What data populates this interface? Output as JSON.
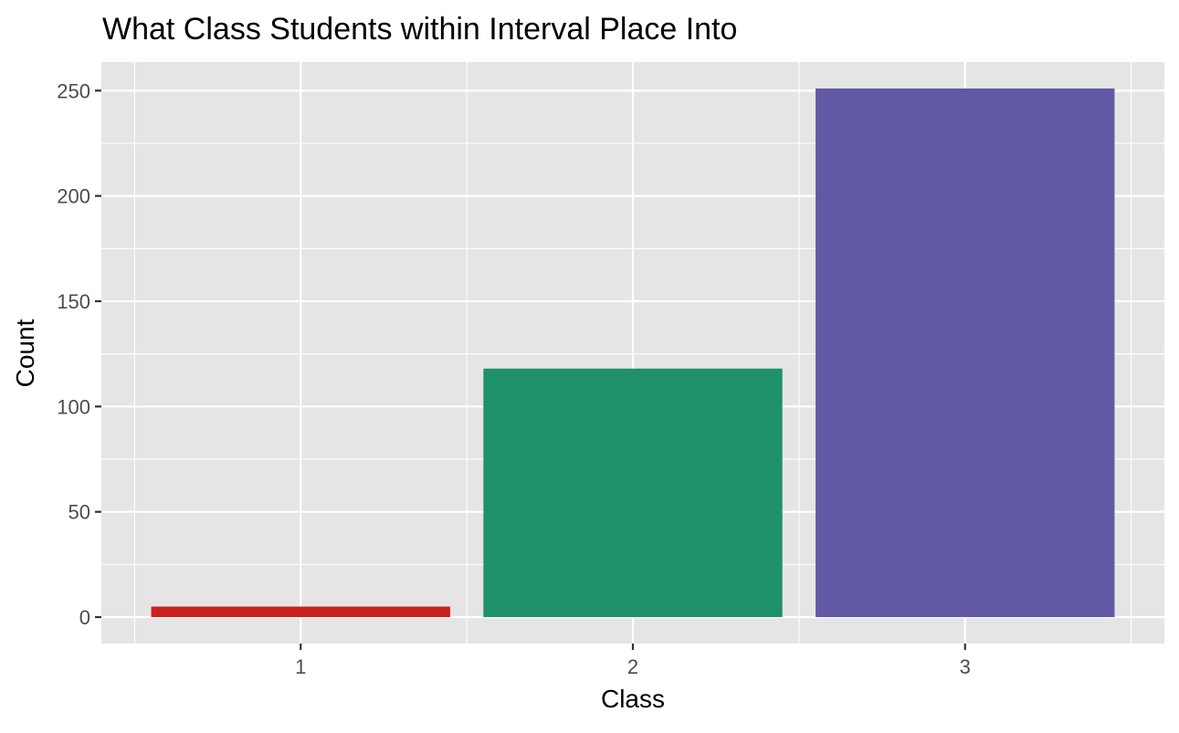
{
  "chart_data": {
    "type": "bar",
    "title": "What Class Students within Interval Place Into",
    "xlabel": "Class",
    "ylabel": "Count",
    "categories": [
      "1",
      "2",
      "3"
    ],
    "values": [
      5,
      118,
      251
    ],
    "colors": [
      "#ca211d",
      "#1e9168",
      "#6159a4"
    ],
    "ylim": [
      -12.55,
      263.55
    ],
    "yticks": [
      0,
      50,
      100,
      150,
      200,
      250
    ],
    "ytick_labels": [
      "0",
      "50",
      "100",
      "150",
      "200",
      "250"
    ],
    "y_minor_ticks": [
      25,
      75,
      125,
      175,
      225
    ],
    "grid": true,
    "panel_background": "#e5e5e5",
    "grid_color": "#ffffff",
    "legend": "none"
  }
}
